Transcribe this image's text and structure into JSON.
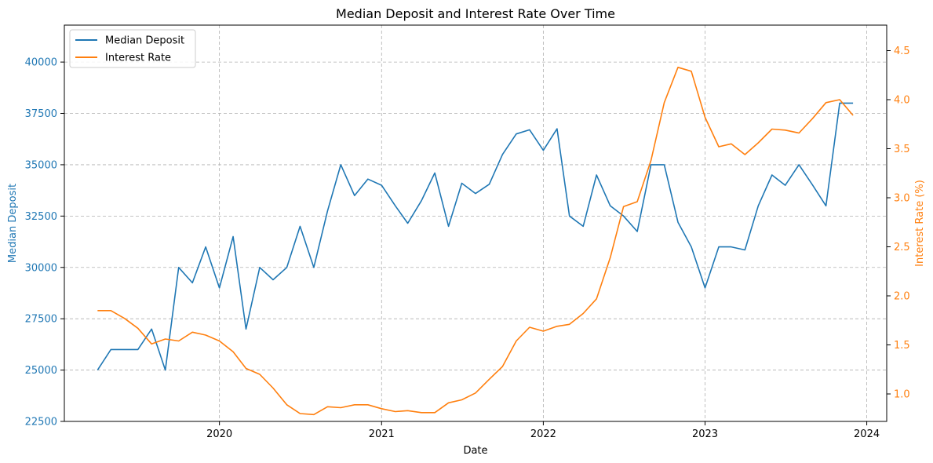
{
  "colors": {
    "deposit": "#1f77b4",
    "rate": "#ff7f0e",
    "grid": "#b0b0b0",
    "axis": "#000000"
  },
  "chart_data": {
    "type": "line",
    "title": "Median Deposit and Interest Rate Over Time",
    "xlabel": "Date",
    "ylabel": "Median Deposit",
    "y2label": "Interest Rate (%)",
    "ylim": [
      22500,
      41800
    ],
    "y2lim": [
      0.72,
      4.76
    ],
    "xlim": [
      "2019-01-16",
      "2024-02-15"
    ],
    "x_ticks": [
      {
        "date": "2020-01-01",
        "label": "2020"
      },
      {
        "date": "2021-01-01",
        "label": "2021"
      },
      {
        "date": "2022-01-01",
        "label": "2022"
      },
      {
        "date": "2023-01-01",
        "label": "2023"
      },
      {
        "date": "2024-01-01",
        "label": "2024"
      }
    ],
    "y_ticks": [
      {
        "value": 22500,
        "label": "22500"
      },
      {
        "value": 25000,
        "label": "25000"
      },
      {
        "value": 27500,
        "label": "27500"
      },
      {
        "value": 30000,
        "label": "30000"
      },
      {
        "value": 32500,
        "label": "32500"
      },
      {
        "value": 35000,
        "label": "35000"
      },
      {
        "value": 37500,
        "label": "37500"
      },
      {
        "value": 40000,
        "label": "40000"
      }
    ],
    "y2_ticks": [
      {
        "value": 1.0,
        "label": "1.0"
      },
      {
        "value": 1.5,
        "label": "1.5"
      },
      {
        "value": 2.0,
        "label": "2.0"
      },
      {
        "value": 2.5,
        "label": "2.5"
      },
      {
        "value": 3.0,
        "label": "3.0"
      },
      {
        "value": 3.5,
        "label": "3.5"
      },
      {
        "value": 4.0,
        "label": "4.0"
      },
      {
        "value": 4.5,
        "label": "4.5"
      }
    ],
    "grid": true,
    "legend_position": "top-left",
    "x": [
      "2019-04",
      "2019-05",
      "2019-06",
      "2019-07",
      "2019-08",
      "2019-09",
      "2019-10",
      "2019-11",
      "2019-12",
      "2020-01",
      "2020-02",
      "2020-03",
      "2020-04",
      "2020-05",
      "2020-06",
      "2020-07",
      "2020-08",
      "2020-09",
      "2020-10",
      "2020-11",
      "2020-12",
      "2021-01",
      "2021-02",
      "2021-03",
      "2021-04",
      "2021-05",
      "2021-06",
      "2021-07",
      "2021-08",
      "2021-09",
      "2021-10",
      "2021-11",
      "2021-12",
      "2022-01",
      "2022-02",
      "2022-03",
      "2022-04",
      "2022-05",
      "2022-06",
      "2022-07",
      "2022-08",
      "2022-09",
      "2022-10",
      "2022-11",
      "2022-12",
      "2023-01",
      "2023-02",
      "2023-03",
      "2023-04",
      "2023-05",
      "2023-06",
      "2023-07",
      "2023-08",
      "2023-09",
      "2023-10",
      "2023-11",
      "2023-12"
    ],
    "series": [
      {
        "name": "Median Deposit",
        "axis": "left",
        "values": [
          25000,
          26000,
          26000,
          26000,
          27000,
          25000,
          30000,
          29250,
          31000,
          29000,
          31500,
          27000,
          30000,
          29400,
          30000,
          32000,
          30000,
          32750,
          35000,
          33500,
          34300,
          34000,
          33000,
          32150,
          33250,
          34600,
          32000,
          34100,
          33600,
          34050,
          35500,
          36500,
          36700,
          35700,
          36750,
          32500,
          32000,
          34500,
          33000,
          32500,
          31750,
          35000,
          35000,
          32200,
          31000,
          29000,
          31000,
          31000,
          30850,
          33000,
          34500,
          34000,
          35000,
          34000,
          33000,
          38000,
          38000
        ]
      },
      {
        "name": "Interest Rate",
        "axis": "right",
        "values": [
          1.85,
          1.85,
          1.77,
          1.67,
          1.51,
          1.56,
          1.54,
          1.63,
          1.6,
          1.54,
          1.43,
          1.26,
          1.2,
          1.06,
          0.89,
          0.8,
          0.79,
          0.87,
          0.86,
          0.89,
          0.89,
          0.85,
          0.82,
          0.83,
          0.81,
          0.81,
          0.91,
          0.94,
          1.01,
          1.15,
          1.28,
          1.54,
          1.68,
          1.64,
          1.69,
          1.71,
          1.82,
          1.97,
          2.39,
          2.91,
          2.96,
          3.38,
          3.97,
          4.33,
          4.29,
          3.82,
          3.52,
          3.55,
          3.44,
          3.56,
          3.7,
          3.69,
          3.66,
          3.81,
          3.97,
          4.0,
          3.84
        ]
      }
    ]
  }
}
